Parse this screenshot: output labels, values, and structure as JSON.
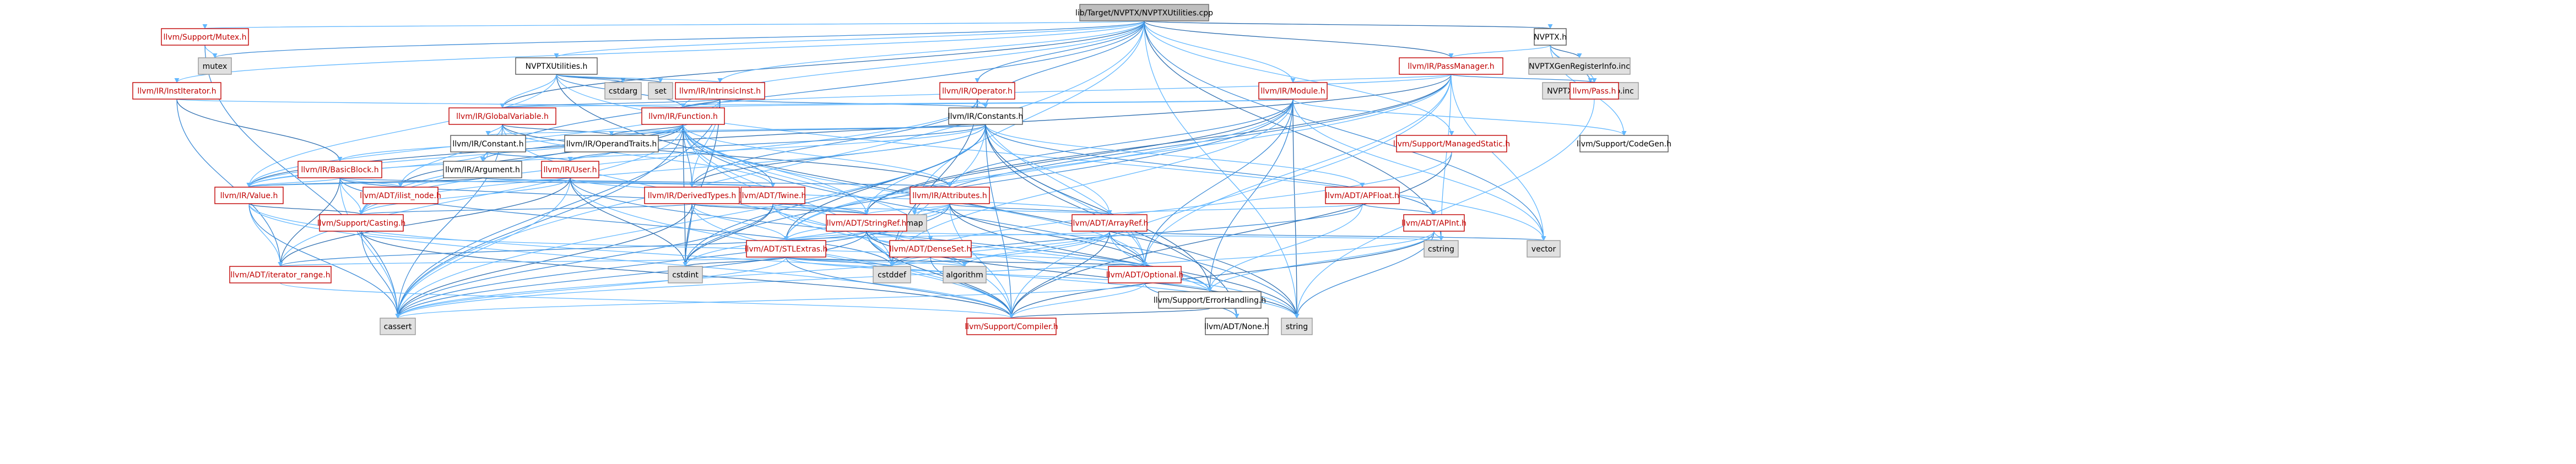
{
  "nodes": {
    "root": "lib/Target/NVPTX/NVPTXUtilities.cpp",
    "nvptx_h": "NVPTX.h",
    "nvptxutilities_h": "NVPTXUtilities.h",
    "mutex_support": "llvm/Support/Mutex.h",
    "mutex": "mutex",
    "institerator": "llvm/IR/InstIterator.h",
    "passmanager": "llvm/IR/PassManager.h",
    "nvptxgenregisterinfo": "NVPTXGenRegisterInfo.inc",
    "nvptxgeninstrinfo": "NVPTXGenInstrInfo.inc",
    "cstdarg": "cstdarg",
    "set": "set",
    "intrinsicinst": "llvm/IR/IntrinsicInst.h",
    "operator": "llvm/IR/Operator.h",
    "module": "llvm/IR/Module.h",
    "pass": "llvm/Pass.h",
    "codegen": "llvm/Support/CodeGen.h",
    "globalvariable": "llvm/IR/GlobalVariable.h",
    "function": "llvm/IR/Function.h",
    "constants": "llvm/IR/Constants.h",
    "operandtraits": "llvm/IR/OperandTraits.h",
    "constant": "llvm/IR/Constant.h",
    "managedstatic": "llvm/Support/ManagedStatic.h",
    "basicblock": "llvm/IR/BasicBlock.h",
    "argument": "llvm/IR/Argument.h",
    "user": "llvm/IR/User.h",
    "apfloat": "llvm/ADT/APFloat.h",
    "value": "llvm/IR/Value.h",
    "ilist_node": "llvm/ADT/ilist_node.h",
    "derivedtypes": "llvm/IR/DerivedTypes.h",
    "twine": "llvm/ADT/Twine.h",
    "attributes": "llvm/IR/Attributes.h",
    "map": "map",
    "arrayref": "llvm/ADT/ArrayRef.h",
    "apint": "llvm/ADT/APInt.h",
    "casting": "llvm/Support/Casting.h",
    "stringref": "llvm/ADT/StringRef.h",
    "cstring": "cstring",
    "vector": "vector",
    "densesetinfo": "llvm/ADT/DenseSet.h",
    "stlextras": "llvm/ADT/STLExtras.h",
    "iterator_range": "llvm/ADT/iterator_range.h",
    "cstdint": "cstdint",
    "cstddef": "cstddef",
    "algorithm": "algorithm",
    "optional": "llvm/ADT/Optional.h",
    "errorhandling": "llvm/Support/ErrorHandling.h",
    "cassert": "cassert",
    "compiler": "llvm/Support/Compiler.h",
    "none": "llvm/ADT/None.h",
    "string": "string"
  },
  "colors": {
    "edge": "#63b8ff",
    "edge_dark": "#2f6fb0",
    "red_node": "#c00000",
    "grey_fill": "#e0e0e0",
    "root_fill": "#bfbfbf"
  }
}
